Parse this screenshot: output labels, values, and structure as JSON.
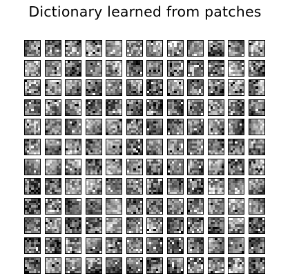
{
  "figure": {
    "title": "Dictionary learned from patches"
  },
  "dictionary": {
    "rows": 12,
    "cols": 12,
    "patch_pixels": 7,
    "colormap": "gray",
    "atom_count": 144
  }
}
